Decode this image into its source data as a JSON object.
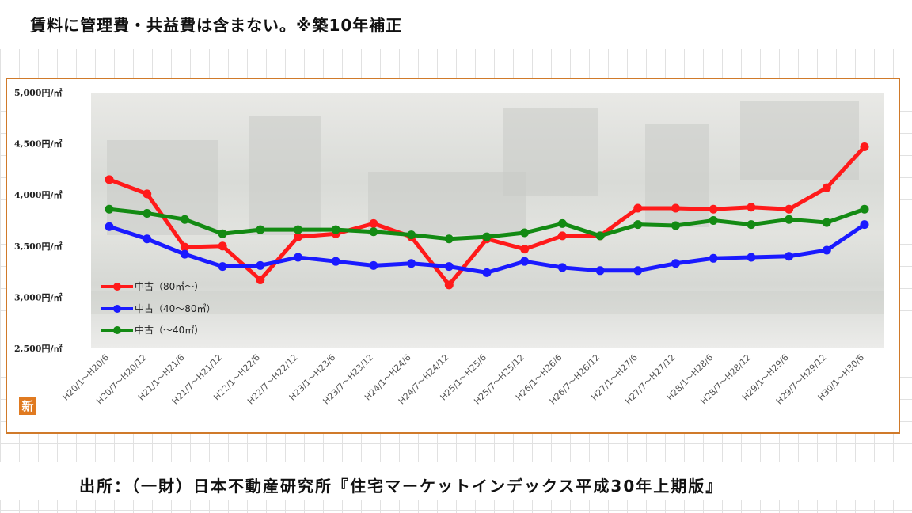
{
  "header": {
    "note": "賃料に管理費・共益費は含まない。※築10年補正"
  },
  "source": {
    "text": "出所：（一財）日本不動産研究所『住宅マーケットインデックス平成30年上期版』"
  },
  "badge": {
    "label": "新"
  },
  "chart_data": {
    "type": "line",
    "categories": [
      "H20/1～H20/6",
      "H20/7～H20/12",
      "H21/1～H21/6",
      "H21/7～H21/12",
      "H22/1～H22/6",
      "H22/7～H22/12",
      "H23/1～H23/6",
      "H23/7～H23/12",
      "H24/1～H24/6",
      "H24/7～H24/12",
      "H25/1～H25/6",
      "H25/7～H25/12",
      "H26/1～H26/6",
      "H26/7～H26/12",
      "H27/1～H27/6",
      "H27/7～H27/12",
      "H28/1～H28/6",
      "H28/7～H28/12",
      "H29/1～H29/6",
      "H29/7～H29/12",
      "H30/1～H30/6"
    ],
    "ylim": [
      2500,
      5000
    ],
    "yticks": [
      2500,
      3000,
      3500,
      4000,
      4500,
      5000
    ],
    "ytick_labels": [
      "2,500円/㎡",
      "3,000円/㎡",
      "3,500円/㎡",
      "4,000円/㎡",
      "4,500円/㎡",
      "5,000円/㎡"
    ],
    "legend_position": "lower-left",
    "series": [
      {
        "name": "中古（80㎡～）",
        "color": "#ff1a1a",
        "values": [
          4150,
          4010,
          3490,
          3500,
          3170,
          3590,
          3620,
          3720,
          3590,
          3120,
          3570,
          3470,
          3600,
          3600,
          3870,
          3870,
          3860,
          3880,
          3860,
          4070,
          4470
        ]
      },
      {
        "name": "中古（40～80㎡）",
        "color": "#1a1aff",
        "values": [
          3690,
          3570,
          3420,
          3300,
          3310,
          3390,
          3350,
          3310,
          3330,
          3300,
          3240,
          3350,
          3290,
          3260,
          3260,
          3330,
          3380,
          3390,
          3400,
          3460,
          3710
        ]
      },
      {
        "name": "中古（～40㎡）",
        "color": "#138a13",
        "values": [
          3860,
          3820,
          3760,
          3620,
          3660,
          3660,
          3660,
          3640,
          3610,
          3570,
          3590,
          3630,
          3720,
          3600,
          3710,
          3700,
          3750,
          3710,
          3760,
          3730,
          3860
        ]
      }
    ]
  }
}
